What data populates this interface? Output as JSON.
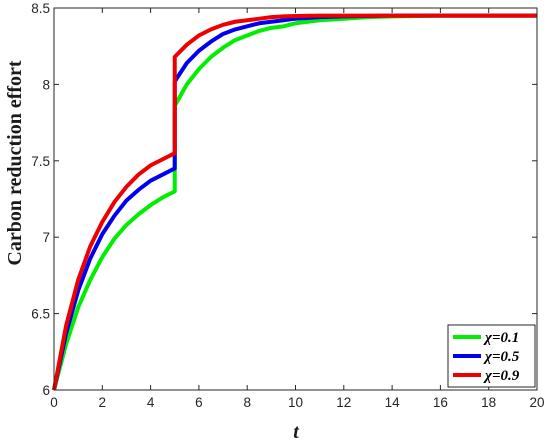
{
  "chart_data": {
    "type": "line",
    "xlabel": "t",
    "ylabel": "Carbon reduction effort",
    "xlim": [
      0,
      20
    ],
    "ylim": [
      6,
      8.5
    ],
    "xticks": [
      "0",
      "2",
      "4",
      "6",
      "8",
      "10",
      "12",
      "14",
      "16",
      "18",
      "20"
    ],
    "yticks": [
      "6",
      "6.5",
      "7",
      "7.5",
      "8",
      "8.5"
    ],
    "grid": false,
    "legend_position": "bottom-right",
    "series": [
      {
        "name": "χ=0.1",
        "color": "#00ee00",
        "x": [
          0,
          0.5,
          1,
          1.5,
          2,
          2.5,
          3,
          3.5,
          4,
          4.5,
          5,
          5,
          5.5,
          6,
          6.5,
          7,
          7.5,
          8,
          8.5,
          9,
          9.5,
          10,
          11,
          12,
          13,
          14,
          15,
          16,
          17,
          18,
          19,
          20
        ],
        "values": [
          6.0,
          6.3,
          6.54,
          6.72,
          6.87,
          6.99,
          7.08,
          7.15,
          7.21,
          7.26,
          7.3,
          7.86,
          8.0,
          8.1,
          8.18,
          8.24,
          8.29,
          8.32,
          8.35,
          8.37,
          8.38,
          8.4,
          8.42,
          8.43,
          8.44,
          8.445,
          8.448,
          8.45,
          8.45,
          8.45,
          8.45,
          8.45
        ]
      },
      {
        "name": "χ=0.5",
        "color": "#0000ee",
        "x": [
          0,
          0.5,
          1,
          1.5,
          2,
          2.5,
          3,
          3.5,
          4,
          4.5,
          5,
          5,
          5.5,
          6,
          6.5,
          7,
          7.5,
          8,
          8.5,
          9,
          9.5,
          10,
          11,
          12,
          13,
          14,
          15,
          16,
          17,
          18,
          19,
          20
        ],
        "values": [
          6.0,
          6.37,
          6.65,
          6.86,
          7.02,
          7.14,
          7.24,
          7.31,
          7.37,
          7.41,
          7.45,
          8.02,
          8.14,
          8.22,
          8.28,
          8.33,
          8.36,
          8.38,
          8.4,
          8.41,
          8.42,
          8.43,
          8.44,
          8.445,
          8.448,
          8.45,
          8.45,
          8.45,
          8.45,
          8.45,
          8.45,
          8.45
        ]
      },
      {
        "name": "χ=0.9",
        "color": "#ee0000",
        "x": [
          0,
          0.5,
          1,
          1.5,
          2,
          2.5,
          3,
          3.5,
          4,
          4.5,
          5,
          5,
          5.5,
          6,
          6.5,
          7,
          7.5,
          8,
          8.5,
          9,
          9.5,
          10,
          11,
          12,
          13,
          14,
          15,
          16,
          17,
          18,
          19,
          20
        ],
        "values": [
          6.0,
          6.42,
          6.72,
          6.94,
          7.1,
          7.23,
          7.33,
          7.41,
          7.47,
          7.51,
          7.55,
          8.18,
          8.26,
          8.32,
          8.36,
          8.39,
          8.41,
          8.42,
          8.43,
          8.44,
          8.445,
          8.448,
          8.45,
          8.45,
          8.45,
          8.45,
          8.45,
          8.45,
          8.45,
          8.45,
          8.45,
          8.45
        ]
      }
    ]
  }
}
